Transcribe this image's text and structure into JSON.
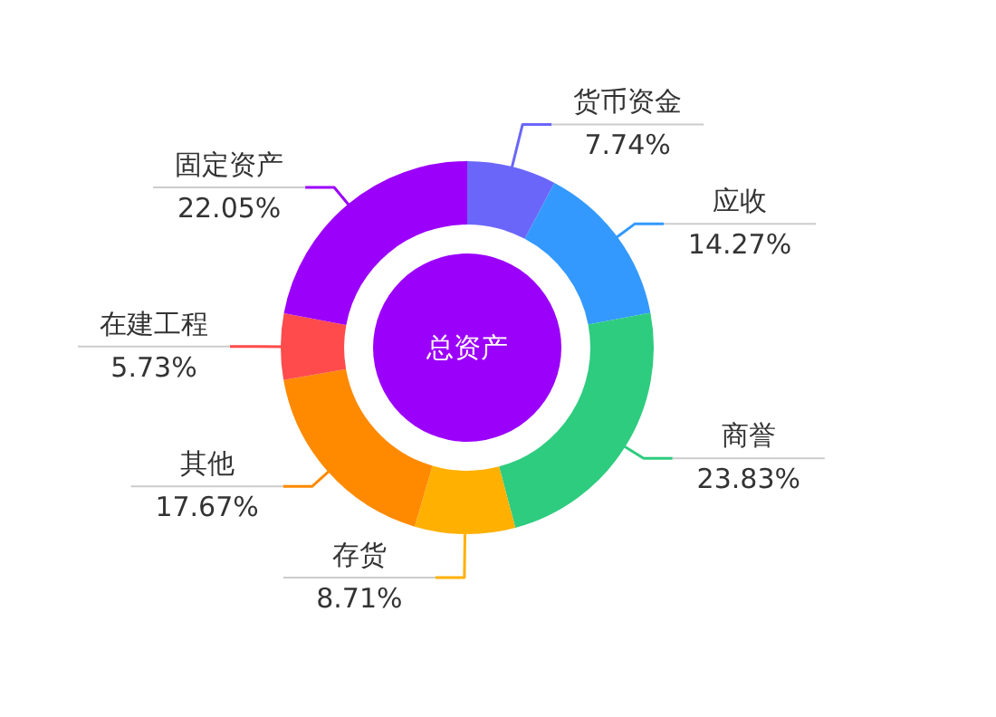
{
  "chart_data": {
    "type": "donut",
    "title": "总资产",
    "categories": [
      "货币资金",
      "应收",
      "商誉",
      "存货",
      "其他",
      "在建工程",
      "固定资产"
    ],
    "values": [
      7.74,
      14.27,
      23.83,
      8.71,
      17.67,
      5.73,
      22.05
    ],
    "value_labels": [
      "7.74%",
      "14.27%",
      "23.83%",
      "8.71%",
      "17.67%",
      "5.73%",
      "22.05%"
    ],
    "colors": [
      "#6b66fa",
      "#3399fe",
      "#2ecc7f",
      "#ffb000",
      "#ff8a00",
      "#ff4b4b",
      "#9b00fb"
    ]
  }
}
